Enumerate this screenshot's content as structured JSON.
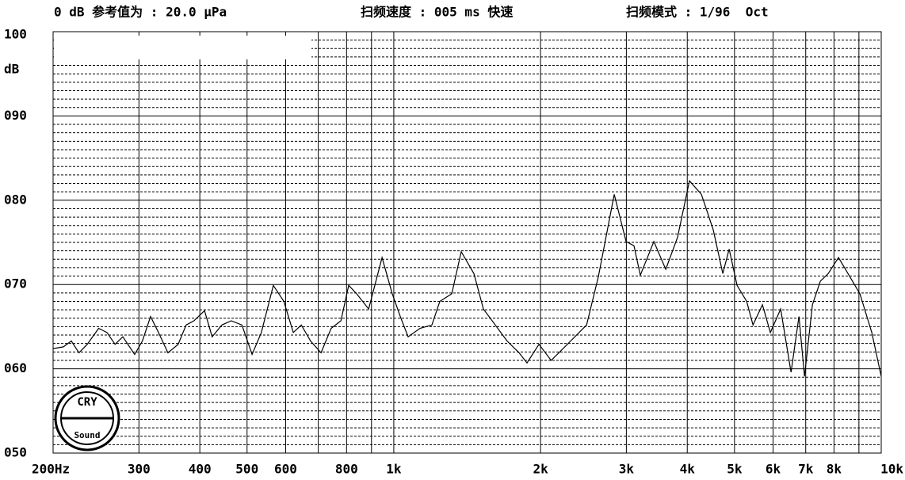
{
  "chart_data": {
    "type": "line",
    "header": [
      "0 dB 参考值为 : 20.0 μPa",
      "扫频速度 : 005 ms 快速",
      "扫频模式 : 1/96  Oct"
    ],
    "y_label": "dB",
    "logo": [
      "CRY",
      "Sound"
    ],
    "x_log": true,
    "grid": true,
    "xlim": [
      200,
      10000
    ],
    "ylim": [
      50,
      100
    ],
    "yminor_step": 1,
    "yticks": [
      {
        "value": 50,
        "label": "050"
      },
      {
        "value": 60,
        "label": "060"
      },
      {
        "value": 70,
        "label": "070"
      },
      {
        "value": 80,
        "label": "080"
      },
      {
        "value": 90,
        "label": "090"
      },
      100
    ],
    "xticks": [
      {
        "value": 200,
        "label": "200Hz"
      },
      300,
      400,
      500,
      600,
      800,
      {
        "value": 1000,
        "label": "1k"
      },
      {
        "value": 2000,
        "label": "2k"
      },
      {
        "value": 3000,
        "label": "3k"
      },
      {
        "value": 4000,
        "label": "4k"
      },
      {
        "value": 5000,
        "label": "5k"
      },
      {
        "value": 6000,
        "label": "6k"
      },
      {
        "value": 7000,
        "label": "7k"
      },
      {
        "value": 8000,
        "label": "8k"
      },
      {
        "value": 10000,
        "label": "10k"
      }
    ],
    "xminor_ticks": [
      700,
      900,
      9000
    ],
    "series": [
      {
        "color": "#000000",
        "x": [
          200,
          210,
          218,
          226,
          235,
          248,
          258,
          268,
          278,
          294,
          305,
          317,
          329,
          344,
          361,
          375,
          389,
          409,
          424,
          444,
          464,
          488,
          512,
          535,
          566,
          595,
          622,
          646,
          675,
          709,
          744,
          779,
          808,
          839,
          888,
          946,
          993,
          1031,
          1070,
          1132,
          1197,
          1243,
          1315,
          1375,
          1460,
          1527,
          1615,
          1708,
          1807,
          1876,
          1985,
          2102,
          2181,
          2306,
          2486,
          2628,
          2833,
          2996,
          3110,
          3205,
          3416,
          3613,
          3821,
          4042,
          4276,
          4522,
          4731,
          4876,
          5062,
          5295,
          5456,
          5706,
          5924,
          6219,
          6530,
          6779,
          6960,
          7225,
          7500,
          7785,
          8174,
          8549,
          9043,
          9564,
          10000
        ],
        "values": [
          62.4,
          62.6,
          63.3,
          61.9,
          62.9,
          64.8,
          64.3,
          62.9,
          63.8,
          61.7,
          63.3,
          66.2,
          64.3,
          61.9,
          62.9,
          65.2,
          65.7,
          66.9,
          63.8,
          65.2,
          65.7,
          65.2,
          61.7,
          64.3,
          69.9,
          68.0,
          64.3,
          65.2,
          63.3,
          61.9,
          64.8,
          65.7,
          69.9,
          68.9,
          67.1,
          73.2,
          68.9,
          66.2,
          63.8,
          64.8,
          65.2,
          68.0,
          68.9,
          73.9,
          71.3,
          67.1,
          65.2,
          63.3,
          61.9,
          60.7,
          62.9,
          61.0,
          61.9,
          63.3,
          65.2,
          70.9,
          80.7,
          75.1,
          74.6,
          71.1,
          75.1,
          71.8,
          75.6,
          82.3,
          80.7,
          76.5,
          71.3,
          74.2,
          69.9,
          68.0,
          65.2,
          67.6,
          64.3,
          67.1,
          59.6,
          66.2,
          59.1,
          67.6,
          70.4,
          71.3,
          73.2,
          71.3,
          68.9,
          64.3,
          59.1
        ]
      }
    ]
  }
}
